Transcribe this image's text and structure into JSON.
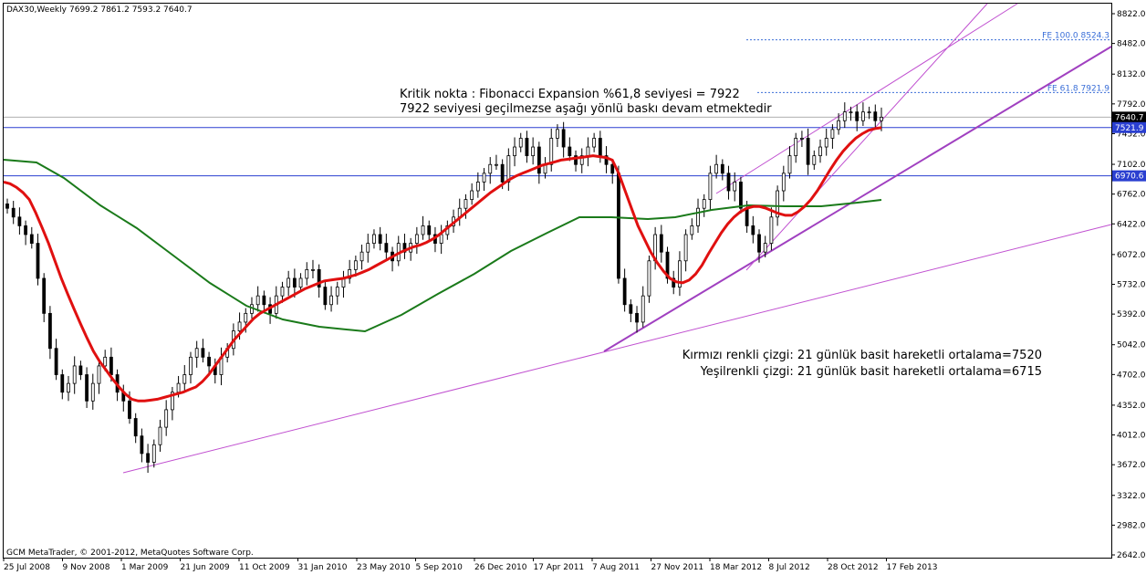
{
  "header": {
    "symbol": "DAX30,Weekly",
    "ohlc": "7699.2 7861.2 7593.2 7640.7"
  },
  "copyright": "GCM MetaTrader, © 2001-2012, MetaQuotes Software Corp.",
  "annotations": {
    "critical_line1": "Kritik nokta : Fibonacci Expansion %61,8 seviyesi = 7922",
    "critical_line2": "7922 seviyesi geçilmezse aşağı yönlü baskı devam etmektedir",
    "red_ma": "Kırmızı renkli çizgi: 21 günlük basit hareketli ortalama=7520",
    "green_ma": "Yeşilrenkli çizgi: 21 günlük basit hareketli ortalama=6715"
  },
  "chart_data": {
    "type": "candlestick",
    "y_ticks": [
      "8822.0",
      "8482.0",
      "8132.0",
      "7792.0",
      "7452.0",
      "7102.0",
      "6762.0",
      "6422.0",
      "6072.0",
      "5732.0",
      "5392.0",
      "5042.0",
      "4702.0",
      "4352.0",
      "4012.0",
      "3672.0",
      "3322.0",
      "2982.0",
      "2642.0"
    ],
    "x_ticks": [
      "25 Jul 2008",
      "9 Nov 2008",
      "1 Mar 2009",
      "21 Jun 2009",
      "11 Oct 2009",
      "31 Jan 2010",
      "23 May 2010",
      "5 Sep 2010",
      "26 Dec 2010",
      "17 Apr 2011",
      "7 Aug 2011",
      "27 Nov 2011",
      "18 Mar 2012",
      "8 Jul 2012",
      "28 Oct 2012",
      "17 Feb 2013"
    ],
    "ylim": [
      2642,
      8982
    ],
    "price_tags": [
      {
        "label": "7640.7",
        "value": 7640.7,
        "style": "current"
      },
      {
        "label": "7521.9",
        "value": 7521.9,
        "style": "blue"
      },
      {
        "label": "6970.6",
        "value": 6970.6,
        "style": "blue"
      }
    ],
    "horizontal_levels": [
      {
        "value": 7521.9,
        "color": "#2a3fd0"
      },
      {
        "value": 6970.6,
        "color": "#2a3fd0"
      },
      {
        "value": 7640.7,
        "color": "#b0b0b0"
      }
    ],
    "fib_levels": [
      {
        "label": "FE 100.0 8524.3",
        "value": 8524.3
      },
      {
        "label": "FE 61.8 7921.9",
        "value": 7921.9
      }
    ],
    "closes": [
      6600,
      6500,
      6400,
      6300,
      6200,
      5800,
      5400,
      5000,
      4700,
      4500,
      4600,
      4800,
      4700,
      4400,
      4600,
      4800,
      4900,
      4700,
      4500,
      4400,
      4200,
      4000,
      3800,
      3700,
      3900,
      4100,
      4300,
      4500,
      4600,
      4700,
      4900,
      5000,
      4900,
      4800,
      4700,
      4900,
      5000,
      5200,
      5300,
      5400,
      5500,
      5600,
      5500,
      5400,
      5600,
      5700,
      5800,
      5700,
      5800,
      5900,
      5900,
      5700,
      5500,
      5600,
      5700,
      5800,
      5900,
      6000,
      6100,
      6200,
      6300,
      6200,
      6100,
      6000,
      6200,
      6100,
      6200,
      6300,
      6400,
      6300,
      6200,
      6300,
      6400,
      6500,
      6600,
      6700,
      6800,
      6900,
      7000,
      7100,
      7100,
      6900,
      7200,
      7300,
      7400,
      7200,
      7300,
      7000,
      7100,
      7400,
      7500,
      7300,
      7200,
      7100,
      7200,
      7300,
      7400,
      7200,
      7100,
      7000,
      5800,
      5500,
      5400,
      5300,
      5600,
      6000,
      6300,
      6100,
      5800,
      5700,
      6000,
      6300,
      6400,
      6600,
      6700,
      7000,
      7100,
      7000,
      6800,
      6900,
      6600,
      6400,
      6300,
      6100,
      6200,
      6500,
      6800,
      7000,
      7200,
      7400,
      7400,
      7100,
      7200,
      7300,
      7400,
      7500,
      7600,
      7700,
      7700,
      7600,
      7700,
      7700,
      7600,
      7640
    ],
    "red_ma": [
      6900,
      6880,
      6840,
      6780,
      6700,
      6550,
      6380,
      6200,
      6000,
      5800,
      5620,
      5450,
      5280,
      5120,
      4970,
      4850,
      4750,
      4650,
      4560,
      4480,
      4420,
      4400,
      4400,
      4410,
      4420,
      4440,
      4460,
      4480,
      4500,
      4530,
      4560,
      4620,
      4700,
      4800,
      4900,
      5000,
      5100,
      5180,
      5260,
      5340,
      5400,
      5440,
      5480,
      5520,
      5560,
      5600,
      5640,
      5680,
      5710,
      5740,
      5770,
      5780,
      5790,
      5800,
      5820,
      5840,
      5870,
      5900,
      5940,
      5980,
      6020,
      6060,
      6100,
      6130,
      6160,
      6180,
      6210,
      6250,
      6300,
      6360,
      6420,
      6480,
      6540,
      6600,
      6660,
      6720,
      6780,
      6830,
      6880,
      6930,
      6970,
      7000,
      7030,
      7060,
      7090,
      7110,
      7130,
      7150,
      7160,
      7170,
      7180,
      7190,
      7200,
      7190,
      7180,
      7150,
      7000,
      6800,
      6600,
      6400,
      6250,
      6100,
      5980,
      5880,
      5800,
      5760,
      5750,
      5780,
      5850,
      5950,
      6080,
      6200,
      6320,
      6420,
      6500,
      6560,
      6600,
      6620,
      6620,
      6600,
      6570,
      6540,
      6520,
      6520,
      6560,
      6620,
      6700,
      6800,
      6920,
      7040,
      7150,
      7250,
      7330,
      7400,
      7450,
      7490,
      7510,
      7520
    ]
  }
}
